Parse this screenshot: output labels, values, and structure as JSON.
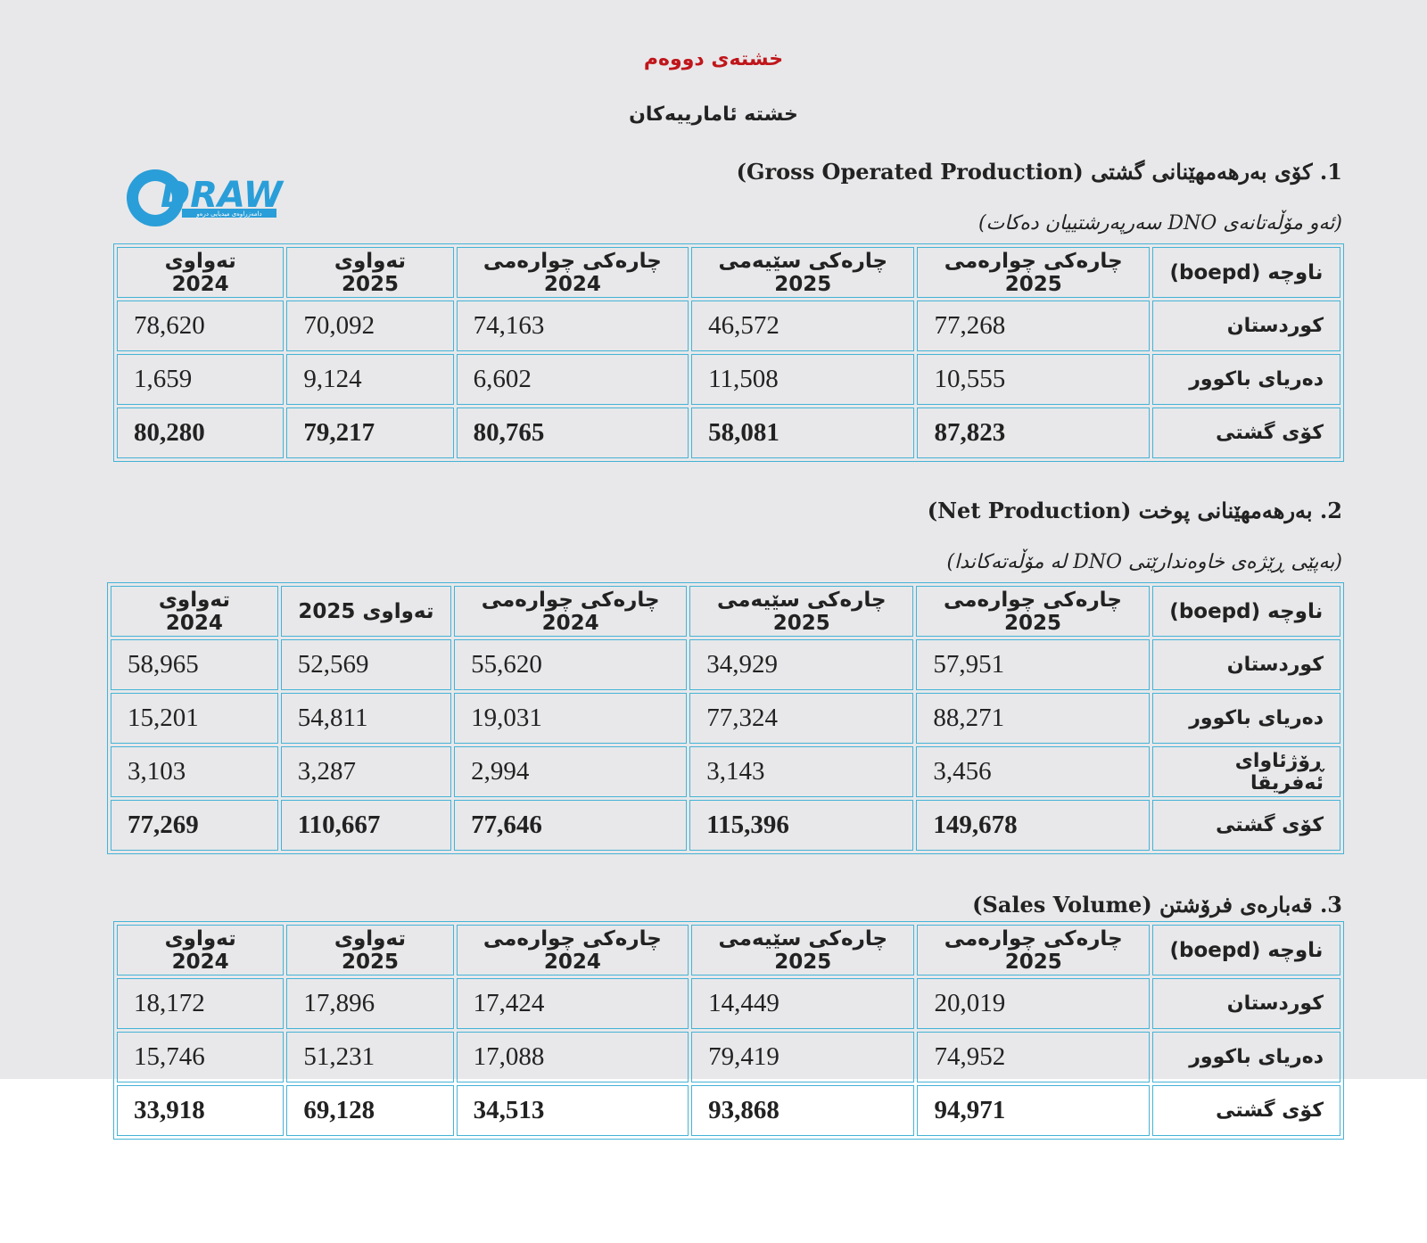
{
  "title": "خشتەی دووەم",
  "subtitle": "خشتە ئامارییەکان",
  "logo": {
    "text": "DRAW",
    "tagline": "دامەزراوەی میدیایی درەو"
  },
  "sections": [
    {
      "heading": "1. کۆی بەرهەمهێنانی گشتی (Gross Operated Production)",
      "note": "(ئەو مۆڵەتانەی DNO سەرپەرشتییان دەکات)",
      "table": {
        "header": [
          "ناوچە (boepd)",
          "چارەکی چوارەمی 2025",
          "چارەکی سێیەمی 2025",
          "چارەکی چوارەمی 2024",
          "تەواوی 2025",
          "تەواوی 2024"
        ],
        "rows": [
          [
            "کوردستان",
            "77,268",
            "46,572",
            "74,163",
            "70,092",
            "78,620"
          ],
          [
            "دەریای باکوور",
            "10,555",
            "11,508",
            "6,602",
            "9,124",
            "1,659"
          ],
          [
            "کۆی گشتی",
            "87,823",
            "58,081",
            "80,765",
            "79,217",
            "80,280"
          ]
        ]
      }
    },
    {
      "heading": "2. بەرهەمهێنانی پوخت (Net Production)",
      "note": "(بەپێی ڕێژەی خاوەندارێتی DNO لە مۆڵەتەکاندا)",
      "table": {
        "header": [
          "ناوچە (boepd)",
          "چارەکی چوارەمی 2025",
          "چارەکی سێیەمی 2025",
          "چارەکی چوارەمی 2024",
          "تەواوی 2025",
          "تەواوی 2024"
        ],
        "rows": [
          [
            "کوردستان",
            "57,951",
            "34,929",
            "55,620",
            "52,569",
            "58,965"
          ],
          [
            "دەریای باکوور",
            "88,271",
            "77,324",
            "19,031",
            "54,811",
            "15,201"
          ],
          [
            "ڕۆژئاوای ئەفریقا",
            "3,456",
            "3,143",
            "2,994",
            "3,287",
            "3,103"
          ],
          [
            "کۆی گشتی",
            "149,678",
            "115,396",
            "77,646",
            "110,667",
            "77,269"
          ]
        ]
      }
    },
    {
      "heading": "3. قەبارەی فرۆشتن (Sales Volume)",
      "table": {
        "header": [
          "ناوچە (boepd)",
          "چارەکی چوارەمی 2025",
          "چارەکی سێیەمی 2025",
          "چارەکی چوارەمی 2024",
          "تەواوی 2025",
          "تەواوی 2024"
        ],
        "rows": [
          [
            "کوردستان",
            "20,019",
            "14,449",
            "17,424",
            "17,896",
            "18,172"
          ],
          [
            "دەریای باکوور",
            "74,952",
            "79,419",
            "17,088",
            "51,231",
            "15,746"
          ],
          [
            "کۆی گشتی",
            "94,971",
            "93,868",
            "34,513",
            "69,128",
            "33,918"
          ]
        ]
      }
    }
  ]
}
